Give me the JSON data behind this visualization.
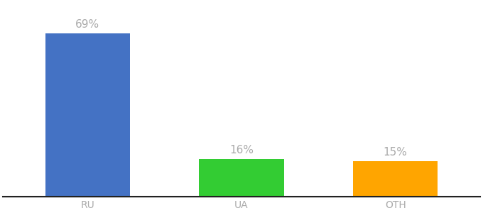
{
  "categories": [
    "RU",
    "UA",
    "OTH"
  ],
  "values": [
    69,
    16,
    15
  ],
  "bar_colors": [
    "#4472C4",
    "#33CC33",
    "#FFA500"
  ],
  "labels": [
    "69%",
    "16%",
    "15%"
  ],
  "label_color": "#aaaaaa",
  "ylim": [
    0,
    82
  ],
  "background_color": "#ffffff",
  "bar_width": 0.55,
  "label_fontsize": 11,
  "tick_fontsize": 10,
  "tick_color": "#aaaaaa",
  "spine_color": "#222222",
  "bar_positions": [
    0,
    1,
    2
  ],
  "xlim": [
    -0.55,
    2.55
  ]
}
